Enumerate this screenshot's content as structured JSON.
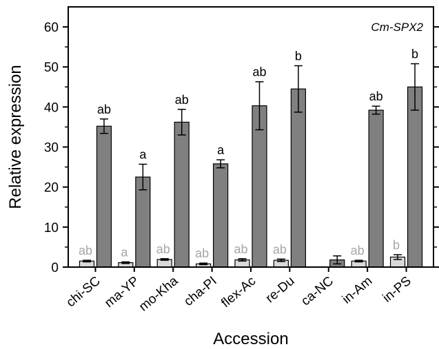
{
  "chart_data": {
    "type": "bar",
    "title": "",
    "annotation": "Cm-SPX2",
    "xlabel": "Accession",
    "ylabel": "Relative expression",
    "ylim": [
      0,
      65
    ],
    "yticks": [
      0,
      10,
      20,
      30,
      40,
      50,
      60
    ],
    "grid": false,
    "categories": [
      "chi-SC",
      "ma-YP",
      "mo-Kha",
      "cha-PI",
      "flex-Ac",
      "re-Du",
      "ca-NC",
      "in-Am",
      "in-PS"
    ],
    "series": [
      {
        "color": "#d9d9d9",
        "label_color": "#a6a6a6",
        "values": [
          1.5,
          1.1,
          1.9,
          0.8,
          1.8,
          1.7,
          null,
          1.5,
          2.5
        ],
        "errors": [
          0.2,
          0.2,
          0.2,
          0.2,
          0.3,
          0.3,
          null,
          0.2,
          0.6
        ],
        "labels": [
          "ab",
          "a",
          "ab",
          "ab",
          "ab",
          "ab",
          "",
          "ab",
          "b"
        ]
      },
      {
        "color": "#808080",
        "label_color": "#000000",
        "values": [
          35.2,
          22.5,
          36.2,
          25.8,
          40.3,
          44.5,
          1.8,
          39.2,
          45.0
        ],
        "errors": [
          1.8,
          3.2,
          3.2,
          1.0,
          6.0,
          5.8,
          1.0,
          1.0,
          5.8
        ],
        "labels": [
          "ab",
          "a",
          "ab",
          "a",
          "ab",
          "b",
          "",
          "ab",
          "b"
        ]
      }
    ]
  }
}
